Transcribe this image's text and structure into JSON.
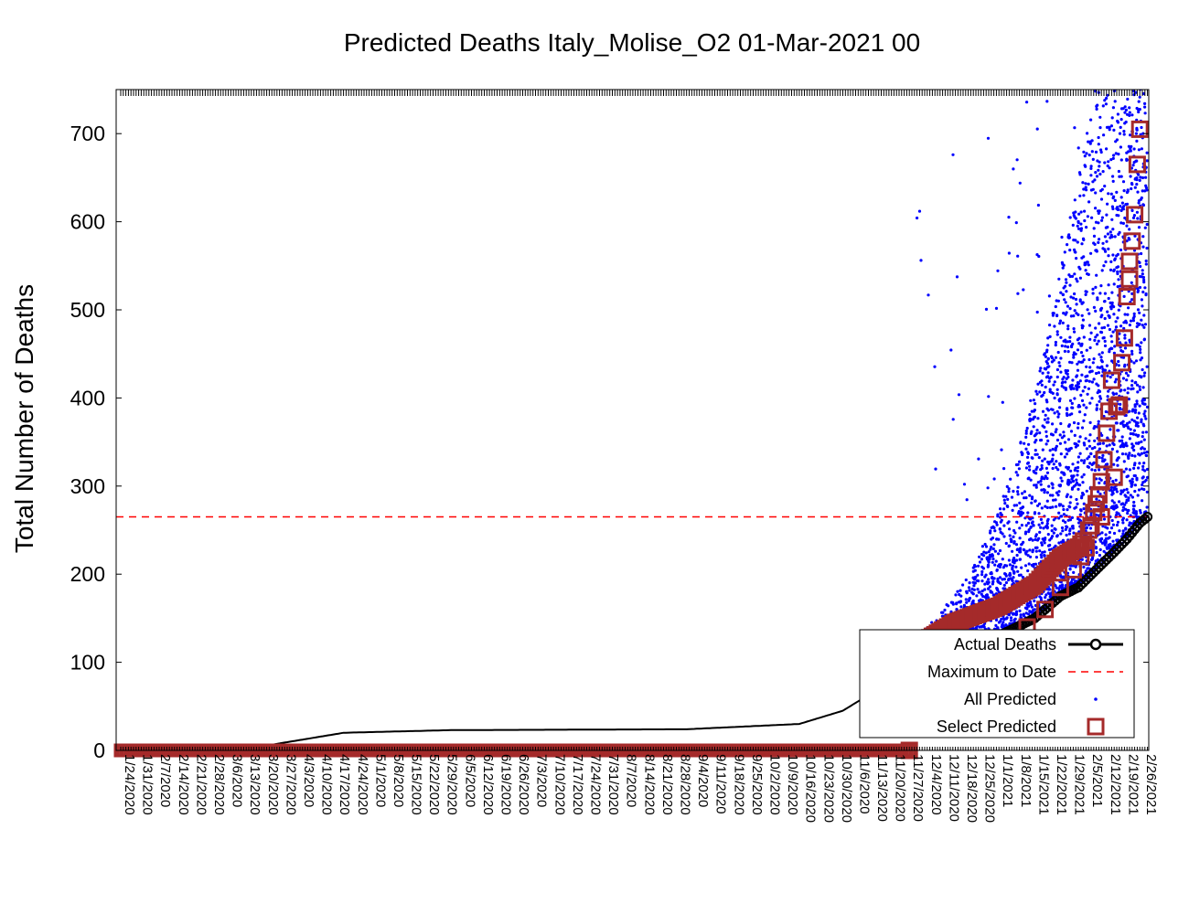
{
  "chart_data": {
    "type": "scatter",
    "title": "Predicted Deaths Italy_Molise_O2 01-Mar-2021 00",
    "xlabel": "",
    "ylabel": "Total Number of Deaths",
    "ylim": [
      0,
      750
    ],
    "yticks": [
      0,
      100,
      200,
      300,
      400,
      500,
      600,
      700
    ],
    "x_start": "1/24/2020",
    "x_end": "2/28/2021",
    "xticks": [
      "1/24/2020",
      "1/31/2020",
      "2/7/2020",
      "2/14/2020",
      "2/21/2020",
      "2/28/2020",
      "3/6/2020",
      "3/13/2020",
      "3/20/2020",
      "3/27/2020",
      "4/3/2020",
      "4/10/2020",
      "4/17/2020",
      "4/24/2020",
      "5/1/2020",
      "5/8/2020",
      "5/15/2020",
      "5/22/2020",
      "5/29/2020",
      "6/5/2020",
      "6/12/2020",
      "6/19/2020",
      "6/26/2020",
      "7/3/2020",
      "7/10/2020",
      "7/17/2020",
      "7/24/2020",
      "7/31/2020",
      "8/7/2020",
      "8/14/2020",
      "8/21/2020",
      "8/28/2020",
      "9/4/2020",
      "9/11/2020",
      "9/18/2020",
      "9/25/2020",
      "10/2/2020",
      "10/9/2020",
      "10/16/2020",
      "10/23/2020",
      "10/30/2020",
      "11/6/2020",
      "11/13/2020",
      "11/20/2020",
      "11/27/2020",
      "12/4/2020",
      "12/11/2020",
      "12/18/2020",
      "12/25/2020",
      "1/1/2021",
      "1/8/2021",
      "1/15/2021",
      "1/22/2021",
      "1/29/2021",
      "2/5/2021",
      "2/12/2021",
      "2/19/2021",
      "2/26/2021"
    ],
    "maximum_to_date": 265,
    "grid": false,
    "legend_position": "bottom-right",
    "series": [
      {
        "name": "Actual Deaths",
        "style": "black line with open circles",
        "color": "#000000",
        "points": [
          [
            "1/24/2020",
            0
          ],
          [
            "3/20/2020",
            5
          ],
          [
            "4/20/2020",
            20
          ],
          [
            "6/1/2020",
            23
          ],
          [
            "9/1/2020",
            24
          ],
          [
            "10/15/2020",
            30
          ],
          [
            "11/1/2020",
            45
          ],
          [
            "11/15/2020",
            70
          ],
          [
            "12/1/2020",
            95
          ],
          [
            "12/15/2020",
            115
          ],
          [
            "1/1/2021",
            130
          ],
          [
            "1/15/2021",
            150
          ],
          [
            "1/25/2021",
            175
          ],
          [
            "2/1/2021",
            185
          ],
          [
            "2/8/2021",
            205
          ],
          [
            "2/15/2021",
            225
          ],
          [
            "2/20/2021",
            240
          ],
          [
            "2/25/2021",
            258
          ],
          [
            "2/28/2021",
            265
          ]
        ]
      },
      {
        "name": "Maximum to Date",
        "style": "red dashed horizontal line",
        "color": "#ff0000",
        "value": 265
      },
      {
        "name": "All Predicted",
        "style": "blue dots",
        "color": "#0000ff"
      },
      {
        "name": "Select Predicted",
        "style": "brown open squares",
        "color": "#a52a2a",
        "points": [
          [
            "11/27/2020",
            0
          ],
          [
            "12/20/2020",
            100
          ],
          [
            "1/5/2021",
            125
          ],
          [
            "1/12/2021",
            140
          ],
          [
            "1/19/2021",
            160
          ],
          [
            "1/25/2021",
            185
          ],
          [
            "1/30/2021",
            205
          ],
          [
            "2/2/2021",
            220
          ],
          [
            "2/4/2021",
            230
          ],
          [
            "2/5/2021",
            250
          ],
          [
            "2/6/2021",
            255
          ],
          [
            "2/7/2021",
            270
          ],
          [
            "2/8/2021",
            280
          ],
          [
            "2/9/2021",
            290
          ],
          [
            "2/10/2021",
            305
          ],
          [
            "2/10/2021",
            265
          ],
          [
            "2/11/2021",
            330
          ],
          [
            "2/12/2021",
            360
          ],
          [
            "2/13/2021",
            385
          ],
          [
            "2/14/2021",
            420
          ],
          [
            "2/15/2021",
            310
          ],
          [
            "2/16/2021",
            390
          ],
          [
            "2/17/2021",
            392
          ],
          [
            "2/18/2021",
            440
          ],
          [
            "2/19/2021",
            468
          ],
          [
            "2/20/2021",
            515
          ],
          [
            "2/21/2021",
            535
          ],
          [
            "2/21/2021",
            555
          ],
          [
            "2/22/2021",
            578
          ],
          [
            "2/23/2021",
            608
          ],
          [
            "2/24/2021",
            665
          ],
          [
            "2/25/2021",
            705
          ]
        ]
      }
    ]
  }
}
